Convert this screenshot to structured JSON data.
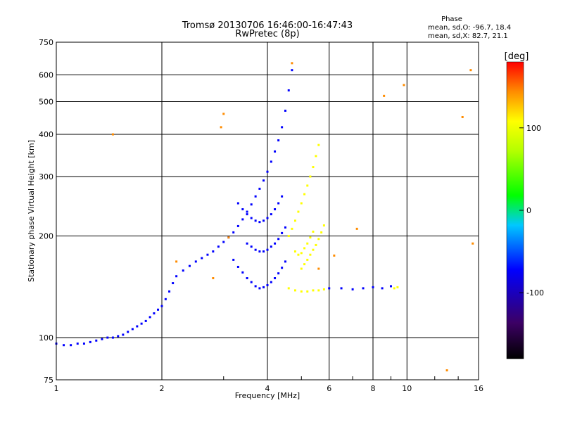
{
  "chart_data": {
    "type": "scatter",
    "title": "Tromsø 20130706 16:46:00-16:47:43",
    "subtitle": "RwPretec (8p)",
    "xlabel": "Frequency [MHz]",
    "ylabel": "Stationary phase Virtual Height [km]",
    "xscale": "log",
    "yscale": "log",
    "xlim": [
      1,
      16
    ],
    "ylim": [
      75,
      750
    ],
    "x_ticks": [
      1,
      2,
      4,
      6,
      8,
      10,
      16
    ],
    "x_tick_labels": [
      "1",
      "2",
      "4",
      "6",
      "8",
      "10",
      "16"
    ],
    "y_ticks": [
      75,
      100,
      200,
      300,
      400,
      500,
      600,
      750
    ],
    "y_tick_labels": [
      "75",
      "100",
      "200",
      "300",
      "400",
      "500",
      "600",
      "750"
    ],
    "grid": true,
    "phase_box": {
      "title": "Phase",
      "line_o": "mean, sd,O: -96.7, 18.4",
      "line_x": "mean, sd,X:  82.7, 21.1"
    },
    "colorbar": {
      "label": "[deg]",
      "range": [
        -180,
        180
      ],
      "ticks": [
        100,
        0,
        -100
      ],
      "tick_labels": [
        "100",
        "0",
        "-100"
      ],
      "colors": [
        "#000000",
        "#3c0064",
        "#0000ff",
        "#00c8ff",
        "#00ff00",
        "#b4ff00",
        "#ffff00",
        "#ff8c00",
        "#ff0000"
      ]
    },
    "series": [
      {
        "points": [
          [
            1.0,
            96
          ],
          [
            1.05,
            95
          ],
          [
            1.1,
            95
          ],
          [
            1.15,
            96
          ],
          [
            1.2,
            96
          ],
          [
            1.25,
            97
          ],
          [
            1.3,
            98
          ],
          [
            1.35,
            99
          ],
          [
            1.4,
            100
          ],
          [
            1.45,
            100
          ],
          [
            1.5,
            101
          ],
          [
            1.55,
            102
          ],
          [
            1.6,
            104
          ],
          [
            1.65,
            106
          ],
          [
            1.7,
            108
          ],
          [
            1.75,
            110
          ],
          [
            1.8,
            112
          ],
          [
            1.85,
            115
          ],
          [
            1.9,
            118
          ],
          [
            1.95,
            121
          ],
          [
            2.0,
            124
          ],
          [
            2.05,
            130
          ],
          [
            2.1,
            137
          ],
          [
            2.15,
            145
          ],
          [
            2.2,
            152
          ],
          [
            2.3,
            158
          ],
          [
            2.4,
            163
          ],
          [
            2.5,
            168
          ],
          [
            2.6,
            172
          ],
          [
            2.7,
            176
          ],
          [
            2.8,
            180
          ],
          [
            2.9,
            186
          ],
          [
            3.0,
            192
          ],
          [
            3.1,
            198
          ],
          [
            3.2,
            205
          ],
          [
            3.3,
            214
          ],
          [
            3.4,
            224
          ],
          [
            3.5,
            236
          ],
          [
            3.6,
            248
          ],
          [
            3.7,
            262
          ],
          [
            3.8,
            276
          ],
          [
            3.9,
            292
          ],
          [
            4.0,
            310
          ],
          [
            4.1,
            332
          ],
          [
            4.2,
            356
          ],
          [
            4.3,
            384
          ],
          [
            4.4,
            420
          ],
          [
            4.5,
            470
          ],
          [
            4.6,
            540
          ],
          [
            4.7,
            620
          ],
          [
            3.2,
            170
          ],
          [
            3.3,
            162
          ],
          [
            3.4,
            156
          ],
          [
            3.5,
            150
          ],
          [
            3.6,
            146
          ],
          [
            3.7,
            142
          ],
          [
            3.8,
            140
          ],
          [
            3.9,
            141
          ],
          [
            4.0,
            143
          ],
          [
            4.1,
            146
          ],
          [
            4.2,
            150
          ],
          [
            4.3,
            155
          ],
          [
            4.4,
            161
          ],
          [
            4.5,
            168
          ],
          [
            3.3,
            250
          ],
          [
            3.4,
            240
          ],
          [
            3.5,
            232
          ],
          [
            3.6,
            226
          ],
          [
            3.7,
            222
          ],
          [
            3.8,
            220
          ],
          [
            3.9,
            222
          ],
          [
            4.0,
            226
          ],
          [
            4.1,
            232
          ],
          [
            4.2,
            240
          ],
          [
            4.3,
            250
          ],
          [
            4.4,
            262
          ],
          [
            3.5,
            190
          ],
          [
            3.6,
            186
          ],
          [
            3.7,
            182
          ],
          [
            3.8,
            180
          ],
          [
            3.9,
            180
          ],
          [
            4.0,
            182
          ],
          [
            4.1,
            186
          ],
          [
            4.2,
            190
          ],
          [
            4.3,
            196
          ],
          [
            4.4,
            204
          ],
          [
            4.5,
            212
          ],
          [
            6.0,
            140
          ],
          [
            6.5,
            140
          ],
          [
            7.0,
            139
          ],
          [
            7.5,
            140
          ],
          [
            8.0,
            141
          ],
          [
            8.5,
            140
          ],
          [
            9.0,
            142
          ]
        ]
      },
      {
        "points": [
          [
            4.6,
            140
          ],
          [
            4.8,
            138
          ],
          [
            5.0,
            137
          ],
          [
            5.2,
            137
          ],
          [
            5.4,
            138
          ],
          [
            5.6,
            138
          ],
          [
            5.8,
            139
          ],
          [
            9.2,
            140
          ],
          [
            9.4,
            141
          ],
          [
            4.6,
            200
          ],
          [
            4.7,
            210
          ],
          [
            4.8,
            222
          ],
          [
            4.9,
            236
          ],
          [
            5.0,
            250
          ],
          [
            5.1,
            266
          ],
          [
            5.2,
            282
          ],
          [
            5.3,
            300
          ],
          [
            5.4,
            320
          ],
          [
            5.5,
            345
          ],
          [
            5.6,
            372
          ],
          [
            5.0,
            160
          ],
          [
            5.1,
            165
          ],
          [
            5.2,
            170
          ],
          [
            5.3,
            176
          ],
          [
            5.4,
            182
          ],
          [
            5.5,
            188
          ],
          [
            5.6,
            196
          ],
          [
            5.7,
            205
          ],
          [
            5.8,
            215
          ],
          [
            4.8,
            180
          ],
          [
            4.9,
            176
          ],
          [
            5.0,
            178
          ],
          [
            5.1,
            184
          ],
          [
            5.2,
            190
          ],
          [
            5.3,
            198
          ],
          [
            5.4,
            206
          ]
        ]
      },
      {
        "points": [
          [
            2.2,
            168
          ],
          [
            2.8,
            150
          ],
          [
            3.0,
            460
          ],
          [
            3.1,
            198
          ],
          [
            4.7,
            650
          ],
          [
            5.6,
            160
          ],
          [
            6.2,
            175
          ],
          [
            7.2,
            210
          ],
          [
            8.6,
            520
          ],
          [
            9.8,
            560
          ],
          [
            13.0,
            80
          ],
          [
            15.2,
            620
          ],
          [
            15.4,
            190
          ],
          [
            14.4,
            450
          ],
          [
            1.45,
            400
          ],
          [
            2.95,
            420
          ]
        ]
      }
    ]
  }
}
